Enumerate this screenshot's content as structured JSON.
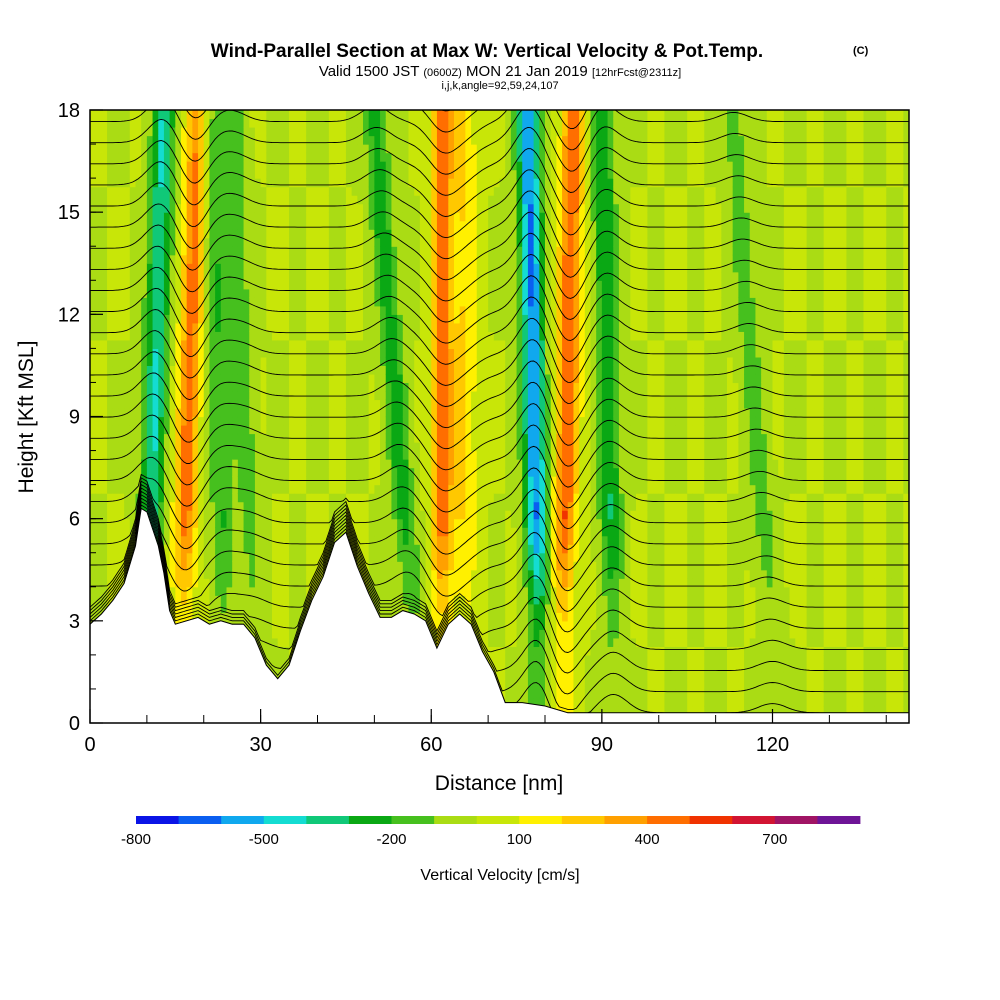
{
  "header": {
    "title": "Wind-Parallel Section at Max W: Vertical Velocity & Pot.Temp.",
    "title_mark": "(C)",
    "valid_prefix": "Valid 1500 JST",
    "valid_z": "(0600Z)",
    "valid_date": "MON 21 Jan 2019",
    "valid_fcst": "[12hrFcst@2311z]",
    "section_info": "i,j,k,angle=92,59,24,107"
  },
  "chart_data": {
    "type": "heatmap",
    "xlabel": "Distance [nm]",
    "ylabel": "Height [Kft MSL]",
    "xlim": [
      0,
      144
    ],
    "ylim": [
      0,
      18
    ],
    "x_ticks": [
      0,
      30,
      60,
      90,
      120
    ],
    "y_ticks": [
      0,
      3,
      6,
      9,
      12,
      15,
      18
    ],
    "x_minor_step": 10,
    "y_minor_step": 1,
    "vertical_velocity_features": [
      {
        "x_base": 10,
        "x_top": 13,
        "w_peak": -400
      },
      {
        "x_base": 16,
        "x_top": 19,
        "w_peak": 450
      },
      {
        "x_base": 24,
        "x_top": 21,
        "w_peak": -200
      },
      {
        "x_base": 29,
        "x_top": 25,
        "w_peak": -150
      },
      {
        "x_base": 57,
        "x_top": 50,
        "w_peak": -250
      },
      {
        "x_base": 62,
        "x_top": 62,
        "w_peak": 450
      },
      {
        "x_base": 66,
        "x_top": 66,
        "w_peak": 200
      },
      {
        "x_base": 79,
        "x_top": 77,
        "w_peak": -600
      },
      {
        "x_base": 83,
        "x_top": 85,
        "w_peak": 500
      },
      {
        "x_base": 92,
        "x_top": 90,
        "w_peak": -300
      },
      {
        "x_base": 120,
        "x_top": 113,
        "w_peak": -150
      }
    ],
    "terrain_kft": [
      [
        0,
        2.9
      ],
      [
        2,
        3.2
      ],
      [
        4,
        3.6
      ],
      [
        6,
        4.1
      ],
      [
        8,
        5.2
      ],
      [
        9,
        6.3
      ],
      [
        10,
        6.2
      ],
      [
        12,
        5.2
      ],
      [
        13,
        4.4
      ],
      [
        14,
        3.3
      ],
      [
        15,
        2.9
      ],
      [
        17,
        3.0
      ],
      [
        19,
        3.1
      ],
      [
        21,
        2.9
      ],
      [
        23,
        3.0
      ],
      [
        25,
        2.9
      ],
      [
        27,
        2.9
      ],
      [
        29,
        2.5
      ],
      [
        31,
        1.7
      ],
      [
        33,
        1.3
      ],
      [
        35,
        1.7
      ],
      [
        37,
        2.7
      ],
      [
        39,
        3.6
      ],
      [
        41,
        4.3
      ],
      [
        43,
        5.3
      ],
      [
        45,
        5.6
      ],
      [
        47,
        4.6
      ],
      [
        49,
        3.8
      ],
      [
        51,
        3.1
      ],
      [
        53,
        3.1
      ],
      [
        55,
        3.3
      ],
      [
        57,
        3.2
      ],
      [
        59,
        3.0
      ],
      [
        61,
        2.2
      ],
      [
        63,
        2.9
      ],
      [
        65,
        3.2
      ],
      [
        67,
        2.9
      ],
      [
        69,
        2.1
      ],
      [
        71,
        1.5
      ],
      [
        73,
        0.6
      ],
      [
        76,
        0.6
      ],
      [
        80,
        0.5
      ],
      [
        84,
        0.3
      ],
      [
        88,
        0.3
      ],
      [
        144,
        0.3
      ]
    ],
    "theta_contour_levels": [
      15,
      16,
      17,
      18,
      19,
      20,
      21,
      22,
      23,
      24,
      25,
      26,
      27,
      28,
      29,
      30,
      31,
      32,
      33,
      34,
      35,
      36,
      37,
      38,
      39,
      40,
      41,
      42,
      43,
      44,
      45
    ]
  },
  "colorbar": {
    "title": "Vertical Velocity [cm/s]",
    "ticks": [
      {
        "value": -800,
        "label": "-800"
      },
      {
        "value": -500,
        "label": "-500"
      },
      {
        "value": -200,
        "label": "-200"
      },
      {
        "value": 100,
        "label": "100"
      },
      {
        "value": 400,
        "label": "400"
      },
      {
        "value": 700,
        "label": "700"
      }
    ],
    "levels": [
      -800,
      -700,
      -600,
      -500,
      -400,
      -300,
      -200,
      -100,
      0,
      100,
      200,
      300,
      400,
      500,
      600,
      700,
      800
    ],
    "colors": [
      "#0a14e6",
      "#0a5ef0",
      "#10a8ee",
      "#14dcd2",
      "#10c878",
      "#0aa814",
      "#46c01e",
      "#aadc14",
      "#c8e608",
      "#fff000",
      "#ffc800",
      "#ffa000",
      "#ff6e00",
      "#f03200",
      "#d21432",
      "#a01464",
      "#6e1496"
    ]
  }
}
